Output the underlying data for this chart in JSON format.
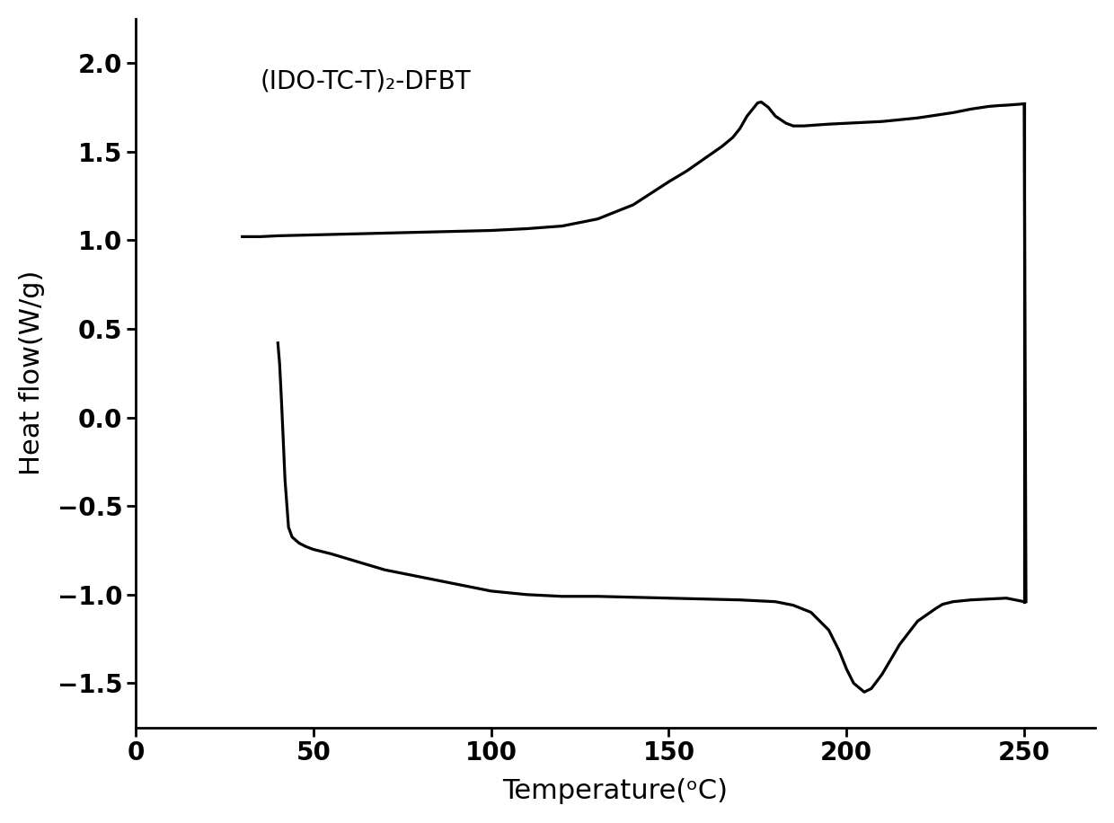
{
  "title": "(IDO-TC-T)₂-DFBT",
  "xlabel": "Temperature(ᵒC)",
  "ylabel": "Heat flow(W/g)",
  "xlim": [
    0,
    270
  ],
  "ylim": [
    -1.75,
    2.25
  ],
  "xticks": [
    0,
    50,
    100,
    150,
    200,
    250
  ],
  "yticks": [
    -1.5,
    -1.0,
    -0.5,
    0.0,
    0.5,
    1.0,
    1.5,
    2.0
  ],
  "line_color": "#000000",
  "line_width": 2.3,
  "background_color": "#ffffff",
  "title_fontsize": 20,
  "label_fontsize": 22,
  "tick_fontsize": 20,
  "heating_x": [
    30,
    35,
    40,
    50,
    60,
    70,
    80,
    90,
    100,
    110,
    120,
    130,
    140,
    150,
    155,
    160,
    165,
    168,
    170,
    172,
    174,
    175,
    176,
    178,
    180,
    183,
    185,
    188,
    190,
    195,
    200,
    205,
    210,
    220,
    230,
    235,
    240,
    243,
    245,
    247,
    249,
    250,
    250.5
  ],
  "heating_y": [
    1.02,
    1.02,
    1.025,
    1.03,
    1.035,
    1.04,
    1.045,
    1.05,
    1.055,
    1.065,
    1.08,
    1.12,
    1.2,
    1.33,
    1.39,
    1.46,
    1.53,
    1.58,
    1.63,
    1.7,
    1.75,
    1.775,
    1.78,
    1.75,
    1.7,
    1.66,
    1.645,
    1.645,
    1.648,
    1.655,
    1.66,
    1.665,
    1.67,
    1.69,
    1.72,
    1.74,
    1.755,
    1.76,
    1.762,
    1.765,
    1.768,
    1.77,
    -1.04
  ],
  "cooling_x": [
    40,
    40.5,
    41,
    41.5,
    42,
    43,
    44,
    46,
    48,
    50,
    55,
    60,
    70,
    80,
    90,
    100,
    110,
    120,
    130,
    140,
    150,
    160,
    170,
    180,
    185,
    190,
    195,
    198,
    200,
    202,
    205,
    207,
    210,
    215,
    220,
    225,
    227,
    230,
    235,
    240,
    245,
    250
  ],
  "cooling_y": [
    0.42,
    0.3,
    0.1,
    -0.12,
    -0.35,
    -0.62,
    -0.675,
    -0.71,
    -0.73,
    -0.745,
    -0.77,
    -0.8,
    -0.86,
    -0.9,
    -0.94,
    -0.98,
    -1.0,
    -1.01,
    -1.01,
    -1.015,
    -1.02,
    -1.025,
    -1.03,
    -1.04,
    -1.06,
    -1.1,
    -1.2,
    -1.32,
    -1.42,
    -1.5,
    -1.55,
    -1.53,
    -1.45,
    -1.28,
    -1.15,
    -1.08,
    -1.055,
    -1.04,
    -1.03,
    -1.025,
    -1.02,
    -1.04
  ]
}
